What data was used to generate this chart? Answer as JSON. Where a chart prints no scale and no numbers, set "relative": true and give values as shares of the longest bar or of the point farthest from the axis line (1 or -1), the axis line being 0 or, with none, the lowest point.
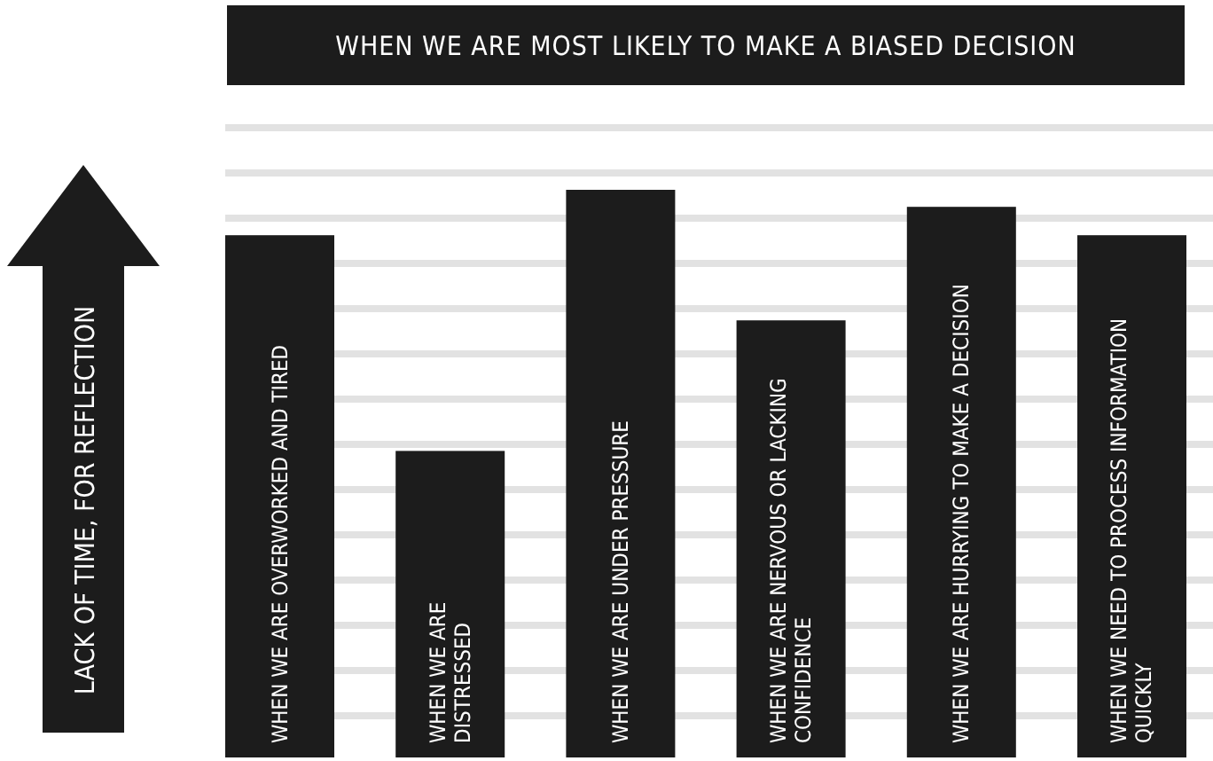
{
  "chart_data": {
    "type": "bar",
    "title": "WHEN WE ARE MOST LIKELY TO MAKE A BIASED DECISION",
    "ylabel": "LACK OF TIME, FOR REFLECTION",
    "relative": true,
    "grid": true,
    "color": "#1c1c1c",
    "categories": [
      "WHEN WE ARE OVERWORKED AND TIRED",
      "WHEN WE ARE DISTRESSED",
      "WHEN WE ARE UNDER PRESSURE",
      "WHEN WE ARE NERVOUS OR LACKING CONFIDENCE",
      "WHEN WE ARE HURRYING TO MAKE A DECISION",
      "WHEN WE NEED TO PROCESS INFORMATION QUICKLY"
    ],
    "values": [
      0.92,
      0.54,
      1,
      0.77,
      0.97,
      0.92
    ]
  }
}
